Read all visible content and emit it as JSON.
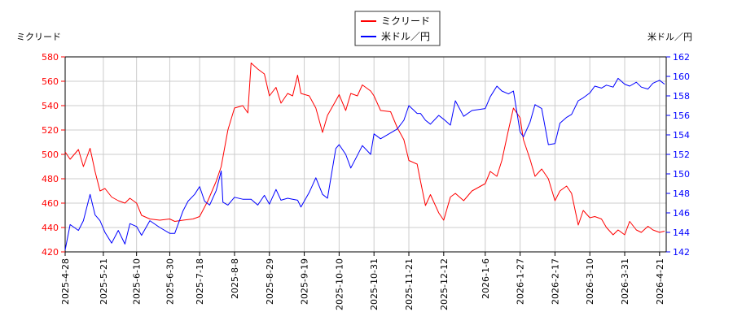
{
  "chart_data": {
    "type": "line",
    "left_axis_title": "ミクリード",
    "right_axis_title": "米ドル／円",
    "legend": [
      "ミクリード",
      "米ドル／円"
    ],
    "legend_placement": "top-center",
    "grid": true,
    "x_ticks": [
      "2025-4-28",
      "2025-5-21",
      "2025-6-10",
      "2025-6-30",
      "2025-7-18",
      "2025-8-8",
      "2025-8-29",
      "2025-9-19",
      "2025-10-10",
      "2025-10-31",
      "2025-11-21",
      "2025-12-12",
      "2026-1-6",
      "2026-1-27",
      "2026-2-17",
      "2026-3-10",
      "2026-3-31",
      "2026-4-21"
    ],
    "y_left": {
      "min": 420,
      "max": 580,
      "ticks": [
        420,
        440,
        460,
        480,
        500,
        520,
        540,
        560,
        580
      ],
      "color": "#ff0000"
    },
    "y_right": {
      "min": 142,
      "max": 162,
      "ticks": [
        142,
        144,
        146,
        148,
        150,
        152,
        154,
        156,
        158,
        160,
        162
      ],
      "color": "#0000ff"
    },
    "series": [
      {
        "name": "ミクリード",
        "axis": "left",
        "color": "#ff0000",
        "points": [
          [
            "2025-4-28",
            502
          ],
          [
            "2025-5-1",
            496
          ],
          [
            "2025-5-6",
            504
          ],
          [
            "2025-5-9",
            490
          ],
          [
            "2025-5-13",
            505
          ],
          [
            "2025-5-16",
            486
          ],
          [
            "2025-5-19",
            470
          ],
          [
            "2025-5-22",
            472
          ],
          [
            "2025-5-26",
            465
          ],
          [
            "2025-5-30",
            462
          ],
          [
            "2025-6-3",
            460
          ],
          [
            "2025-6-6",
            464
          ],
          [
            "2025-6-10",
            460
          ],
          [
            "2025-6-13",
            450
          ],
          [
            "2025-6-18",
            447
          ],
          [
            "2025-6-24",
            446
          ],
          [
            "2025-6-30",
            447
          ],
          [
            "2025-7-3",
            445
          ],
          [
            "2025-7-8",
            446
          ],
          [
            "2025-7-14",
            447
          ],
          [
            "2025-7-18",
            449
          ],
          [
            "2025-7-23",
            462
          ],
          [
            "2025-7-28",
            478
          ],
          [
            "2025-7-31",
            490
          ],
          [
            "2025-8-4",
            520
          ],
          [
            "2025-8-8",
            538
          ],
          [
            "2025-8-13",
            540
          ],
          [
            "2025-8-16",
            534
          ],
          [
            "2025-8-18",
            575
          ],
          [
            "2025-8-22",
            570
          ],
          [
            "2025-8-26",
            566
          ],
          [
            "2025-8-29",
            548
          ],
          [
            "2025-9-2",
            555
          ],
          [
            "2025-9-5",
            542
          ],
          [
            "2025-9-9",
            550
          ],
          [
            "2025-9-12",
            548
          ],
          [
            "2025-9-15",
            565
          ],
          [
            "2025-9-17",
            550
          ],
          [
            "2025-9-22",
            548
          ],
          [
            "2025-9-26",
            538
          ],
          [
            "2025-9-30",
            518
          ],
          [
            "2025-10-3",
            532
          ],
          [
            "2025-10-8",
            544
          ],
          [
            "2025-10-10",
            549
          ],
          [
            "2025-10-14",
            536
          ],
          [
            "2025-10-17",
            550
          ],
          [
            "2025-10-21",
            548
          ],
          [
            "2025-10-24",
            557
          ],
          [
            "2025-10-29",
            552
          ],
          [
            "2025-10-31",
            548
          ],
          [
            "2025-11-4",
            536
          ],
          [
            "2025-11-10",
            535
          ],
          [
            "2025-11-14",
            522
          ],
          [
            "2025-11-18",
            512
          ],
          [
            "2025-11-21",
            495
          ],
          [
            "2025-11-26",
            492
          ],
          [
            "2025-11-28",
            478
          ],
          [
            "2025-12-1",
            458
          ],
          [
            "2025-12-4",
            467
          ],
          [
            "2025-12-9",
            452
          ],
          [
            "2025-12-12",
            446
          ],
          [
            "2025-12-16",
            465
          ],
          [
            "2025-12-19",
            468
          ],
          [
            "2025-12-24",
            462
          ],
          [
            "2025-12-29",
            470
          ],
          [
            "2026-1-6",
            476
          ],
          [
            "2026-1-9",
            486
          ],
          [
            "2026-1-13",
            482
          ],
          [
            "2026-1-16",
            495
          ],
          [
            "2026-1-20",
            520
          ],
          [
            "2026-1-23",
            538
          ],
          [
            "2026-1-27",
            530
          ],
          [
            "2026-1-29",
            512
          ],
          [
            "2026-2-2",
            496
          ],
          [
            "2026-2-5",
            482
          ],
          [
            "2026-2-9",
            488
          ],
          [
            "2026-2-13",
            480
          ],
          [
            "2026-2-17",
            462
          ],
          [
            "2026-2-20",
            470
          ],
          [
            "2026-2-24",
            474
          ],
          [
            "2026-2-27",
            468
          ],
          [
            "2026-3-3",
            442
          ],
          [
            "2026-3-6",
            454
          ],
          [
            "2026-3-10",
            448
          ],
          [
            "2026-3-13",
            449
          ],
          [
            "2026-3-17",
            447
          ],
          [
            "2026-3-20",
            440
          ],
          [
            "2026-3-24",
            434
          ],
          [
            "2026-3-27",
            438
          ],
          [
            "2026-3-31",
            434
          ],
          [
            "2026-4-3",
            445
          ],
          [
            "2026-4-7",
            438
          ],
          [
            "2026-4-10",
            436
          ],
          [
            "2026-4-14",
            441
          ],
          [
            "2026-4-17",
            438
          ],
          [
            "2026-4-21",
            436
          ],
          [
            "2026-4-24",
            437
          ]
        ]
      },
      {
        "name": "米ドル／円",
        "axis": "right",
        "color": "#0000ff",
        "points": [
          [
            "2025-4-28",
            142.2
          ],
          [
            "2025-5-1",
            144.8
          ],
          [
            "2025-5-6",
            144.2
          ],
          [
            "2025-5-9",
            145.2
          ],
          [
            "2025-5-13",
            147.9
          ],
          [
            "2025-5-16",
            145.8
          ],
          [
            "2025-5-19",
            145.2
          ],
          [
            "2025-5-22",
            144.0
          ],
          [
            "2025-5-26",
            142.9
          ],
          [
            "2025-5-30",
            144.2
          ],
          [
            "2025-6-3",
            142.8
          ],
          [
            "2025-6-6",
            144.9
          ],
          [
            "2025-6-10",
            144.6
          ],
          [
            "2025-6-13",
            143.7
          ],
          [
            "2025-6-18",
            145.2
          ],
          [
            "2025-6-24",
            144.5
          ],
          [
            "2025-6-30",
            143.9
          ],
          [
            "2025-7-3",
            143.9
          ],
          [
            "2025-7-8",
            146.2
          ],
          [
            "2025-7-11",
            147.2
          ],
          [
            "2025-7-15",
            147.9
          ],
          [
            "2025-7-18",
            148.7
          ],
          [
            "2025-7-21",
            147.2
          ],
          [
            "2025-7-24",
            146.8
          ],
          [
            "2025-7-28",
            148.3
          ],
          [
            "2025-7-31",
            150.3
          ],
          [
            "2025-8-1",
            147.1
          ],
          [
            "2025-8-4",
            146.8
          ],
          [
            "2025-8-8",
            147.6
          ],
          [
            "2025-8-13",
            147.4
          ],
          [
            "2025-8-18",
            147.4
          ],
          [
            "2025-8-22",
            146.8
          ],
          [
            "2025-8-26",
            147.8
          ],
          [
            "2025-8-29",
            146.9
          ],
          [
            "2025-9-2",
            148.4
          ],
          [
            "2025-9-5",
            147.3
          ],
          [
            "2025-9-9",
            147.5
          ],
          [
            "2025-9-12",
            147.4
          ],
          [
            "2025-9-15",
            147.3
          ],
          [
            "2025-9-17",
            146.6
          ],
          [
            "2025-9-22",
            148.1
          ],
          [
            "2025-9-26",
            149.6
          ],
          [
            "2025-9-30",
            147.9
          ],
          [
            "2025-10-3",
            147.5
          ],
          [
            "2025-10-8",
            152.6
          ],
          [
            "2025-10-10",
            153.0
          ],
          [
            "2025-10-14",
            152.0
          ],
          [
            "2025-10-17",
            150.6
          ],
          [
            "2025-10-21",
            151.9
          ],
          [
            "2025-10-24",
            152.9
          ],
          [
            "2025-10-29",
            152.0
          ],
          [
            "2025-10-31",
            154.1
          ],
          [
            "2025-11-4",
            153.6
          ],
          [
            "2025-11-10",
            154.2
          ],
          [
            "2025-11-14",
            154.6
          ],
          [
            "2025-11-18",
            155.5
          ],
          [
            "2025-11-21",
            157.0
          ],
          [
            "2025-11-26",
            156.2
          ],
          [
            "2025-11-28",
            156.2
          ],
          [
            "2025-12-1",
            155.5
          ],
          [
            "2025-12-4",
            155.1
          ],
          [
            "2025-12-9",
            156.0
          ],
          [
            "2025-12-12",
            155.6
          ],
          [
            "2025-12-16",
            155.0
          ],
          [
            "2025-12-19",
            157.5
          ],
          [
            "2025-12-24",
            155.9
          ],
          [
            "2025-12-29",
            156.5
          ],
          [
            "2026-1-6",
            156.7
          ],
          [
            "2026-1-9",
            157.9
          ],
          [
            "2026-1-13",
            159.0
          ],
          [
            "2026-1-16",
            158.5
          ],
          [
            "2026-1-20",
            158.2
          ],
          [
            "2026-1-23",
            158.5
          ],
          [
            "2026-1-27",
            154.3
          ],
          [
            "2026-1-29",
            153.8
          ],
          [
            "2026-2-2",
            155.3
          ],
          [
            "2026-2-5",
            157.1
          ],
          [
            "2026-2-9",
            156.7
          ],
          [
            "2026-2-13",
            153.0
          ],
          [
            "2026-2-17",
            153.1
          ],
          [
            "2026-2-20",
            155.2
          ],
          [
            "2026-2-24",
            155.8
          ],
          [
            "2026-2-27",
            156.1
          ],
          [
            "2026-3-3",
            157.5
          ],
          [
            "2026-3-6",
            157.8
          ],
          [
            "2026-3-10",
            158.3
          ],
          [
            "2026-3-13",
            159.0
          ],
          [
            "2026-3-17",
            158.8
          ],
          [
            "2026-3-20",
            159.1
          ],
          [
            "2026-3-24",
            158.9
          ],
          [
            "2026-3-27",
            159.8
          ],
          [
            "2026-3-31",
            159.2
          ],
          [
            "2026-4-3",
            159.0
          ],
          [
            "2026-4-7",
            159.4
          ],
          [
            "2026-4-10",
            158.9
          ],
          [
            "2026-4-14",
            158.7
          ],
          [
            "2026-4-17",
            159.3
          ],
          [
            "2026-4-21",
            159.6
          ],
          [
            "2026-4-24",
            159.2
          ]
        ]
      }
    ]
  }
}
